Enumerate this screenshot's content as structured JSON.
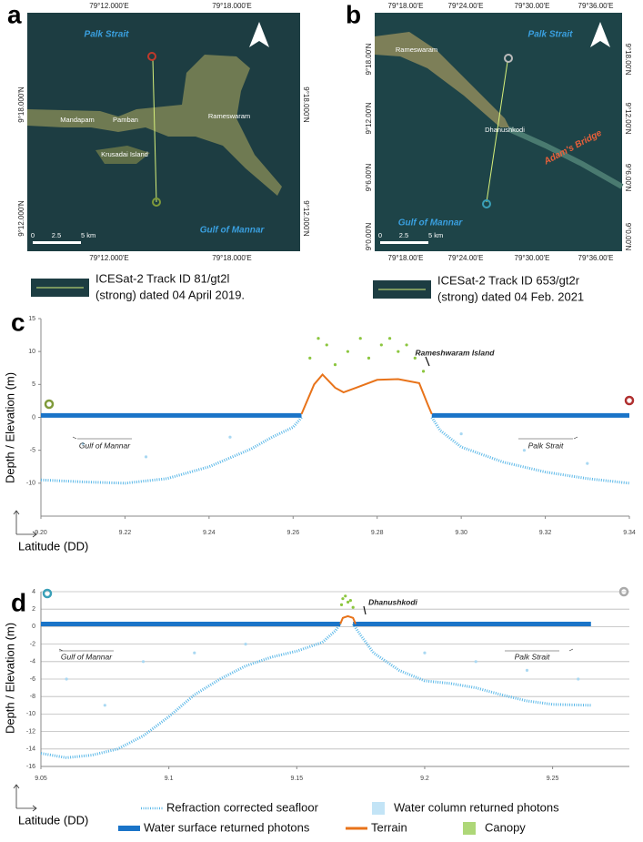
{
  "panels": [
    {
      "label": "a",
      "top_ticks": [
        "79°12.000'E",
        "79°18.000'E"
      ],
      "left_ticks": [
        "9°18.000'N",
        "9°12.000'N"
      ],
      "places": [
        "Palk Strait",
        "Mandapam",
        "Pamban",
        "Rameswaram",
        "Krusadai Island",
        "Gulf of Mannar"
      ],
      "scale": [
        "0",
        "2.5",
        "5 km"
      ],
      "caption_lines": [
        "ICESat-2 Track ID 81/gt2l",
        "(strong) dated 04 April 2019."
      ]
    },
    {
      "label": "b",
      "top_ticks": [
        "79°18.00'E",
        "79°24.00'E",
        "79°30.00'E",
        "79°36.00'E"
      ],
      "left_ticks": [
        "9°18.00'N",
        "9°12.00'N",
        "9°6.00'N",
        "9°0.00'N"
      ],
      "places": [
        "Rameswaram",
        "Palk Strait",
        "Dhanushkodi",
        "Adam's Bridge",
        "Gulf of Mannar"
      ],
      "scale": [
        "0",
        "2.5",
        "5 km"
      ],
      "caption_lines": [
        "ICESat-2 Track ID 653/gt2r",
        "(strong) dated 04 Feb. 2021"
      ]
    }
  ],
  "chart_data": [
    {
      "type": "scatter",
      "label": "c",
      "ylabel": "Depth / Elevation (m)",
      "xlabel": "Latitude (DD)",
      "xlim": [
        9.2,
        9.34
      ],
      "xticks": [
        {
          "value": 9.2,
          "label": "9.20"
        },
        9.22,
        9.24,
        9.26,
        9.28,
        {
          "value": 9.3,
          "label": "9.30"
        },
        9.32,
        9.34
      ],
      "ylim": [
        -15,
        15
      ],
      "yticks": [
        -10,
        -5,
        0,
        5,
        10,
        15
      ],
      "grid": false,
      "annotations": [
        "Rameshwaram Island",
        "Gulf of Mannar",
        "Palk Strait"
      ],
      "series": [
        {
          "name": "Refraction corrected seafloor",
          "mode": "line",
          "color": "#5bb8e8",
          "x": [
            9.2,
            9.21,
            9.22,
            9.23,
            9.24,
            9.25,
            9.255,
            9.26,
            9.262,
            null,
            9.293,
            9.295,
            9.3,
            9.31,
            9.32,
            9.33,
            9.34
          ],
          "values": [
            -9.5,
            -9.8,
            -10,
            -9.3,
            -7.5,
            -4.8,
            -3,
            -1.5,
            0,
            null,
            0,
            -2,
            -4.5,
            -6.8,
            -8.3,
            -9.3,
            -10
          ]
        },
        {
          "name": "Water column returned photons",
          "mode": "markers",
          "color": "#a9d8f2",
          "x": [
            9.21,
            9.225,
            9.245,
            9.3,
            9.315,
            9.33
          ],
          "values": [
            -4,
            -6,
            -3,
            -2.5,
            -5,
            -7
          ]
        },
        {
          "name": "Water surface returned photons",
          "mode": "line",
          "color": "#1a74c8",
          "x": [
            9.2,
            9.262,
            null,
            9.293,
            9.34
          ],
          "values": [
            0.3,
            0.3,
            null,
            0.3,
            0.3
          ]
        },
        {
          "name": "Terrain",
          "mode": "line",
          "color": "#e8731a",
          "x": [
            9.262,
            9.265,
            9.267,
            9.27,
            9.272,
            9.275,
            9.28,
            9.285,
            9.29,
            9.292,
            9.293
          ],
          "values": [
            0.5,
            5,
            6.5,
            4.5,
            3.8,
            4.5,
            5.7,
            5.8,
            5.2,
            2,
            0.5
          ]
        },
        {
          "name": "Canopy",
          "mode": "markers",
          "color": "#8cc63f",
          "x": [
            9.264,
            9.266,
            9.268,
            9.27,
            9.273,
            9.276,
            9.278,
            9.281,
            9.283,
            9.285,
            9.287,
            9.289,
            9.291
          ],
          "values": [
            9,
            12,
            11,
            8,
            10,
            12,
            9,
            11,
            12,
            10,
            11,
            9,
            7
          ]
        }
      ]
    },
    {
      "type": "scatter",
      "label": "d",
      "ylabel": "Depth / Elevation (m)",
      "xlabel": "Latitude (DD)",
      "xlim": [
        9.05,
        9.28
      ],
      "xticks": [
        9.05,
        9.1,
        9.15,
        9.2,
        9.25
      ],
      "ylim": [
        -16,
        4
      ],
      "yticks": [
        -16,
        -14,
        -12,
        -10,
        -8,
        -6,
        -4,
        -2,
        0,
        2,
        4
      ],
      "grid": true,
      "annotations": [
        "Dhanushkodi",
        "Gulf of Mannar",
        "Palk Strait"
      ],
      "series": [
        {
          "name": "Refraction corrected seafloor",
          "mode": "line",
          "color": "#5bb8e8",
          "x": [
            9.05,
            9.06,
            9.07,
            9.08,
            9.09,
            9.1,
            9.11,
            9.12,
            9.13,
            9.14,
            9.15,
            9.16,
            9.165,
            9.167,
            null,
            9.172,
            9.175,
            9.18,
            9.19,
            9.2,
            9.21,
            9.22,
            9.23,
            9.24,
            9.25,
            9.265
          ],
          "values": [
            -14.5,
            -15,
            -14.7,
            -14,
            -12.5,
            -10.3,
            -7.8,
            -6,
            -4.5,
            -3.5,
            -2.8,
            -1.8,
            -0.5,
            0.3,
            null,
            0.3,
            -1,
            -3,
            -5,
            -6.2,
            -6.5,
            -7,
            -7.8,
            -8.5,
            -8.9,
            -9
          ]
        },
        {
          "name": "Water column returned photons",
          "mode": "markers",
          "color": "#a9d8f2",
          "x": [
            9.06,
            9.075,
            9.09,
            9.11,
            9.13,
            9.2,
            9.22,
            9.24,
            9.26
          ],
          "values": [
            -6,
            -9,
            -4,
            -3,
            -2,
            -3,
            -4,
            -5,
            -6
          ]
        },
        {
          "name": "Water surface returned photons",
          "mode": "line",
          "color": "#1a74c8",
          "x": [
            9.05,
            9.167,
            null,
            9.172,
            9.265
          ],
          "values": [
            0.3,
            0.3,
            null,
            0.3,
            0.3
          ]
        },
        {
          "name": "Terrain",
          "mode": "line",
          "color": "#e8731a",
          "x": [
            9.167,
            9.168,
            9.17,
            9.172,
            9.173
          ],
          "values": [
            0.3,
            1,
            1.2,
            1,
            0.3
          ]
        },
        {
          "name": "Canopy",
          "mode": "markers",
          "color": "#8cc63f",
          "x": [
            9.1675,
            9.168,
            9.169,
            9.17,
            9.171,
            9.172
          ],
          "values": [
            2.5,
            3.2,
            3.5,
            2.8,
            3,
            2.2
          ]
        }
      ]
    }
  ]
}
